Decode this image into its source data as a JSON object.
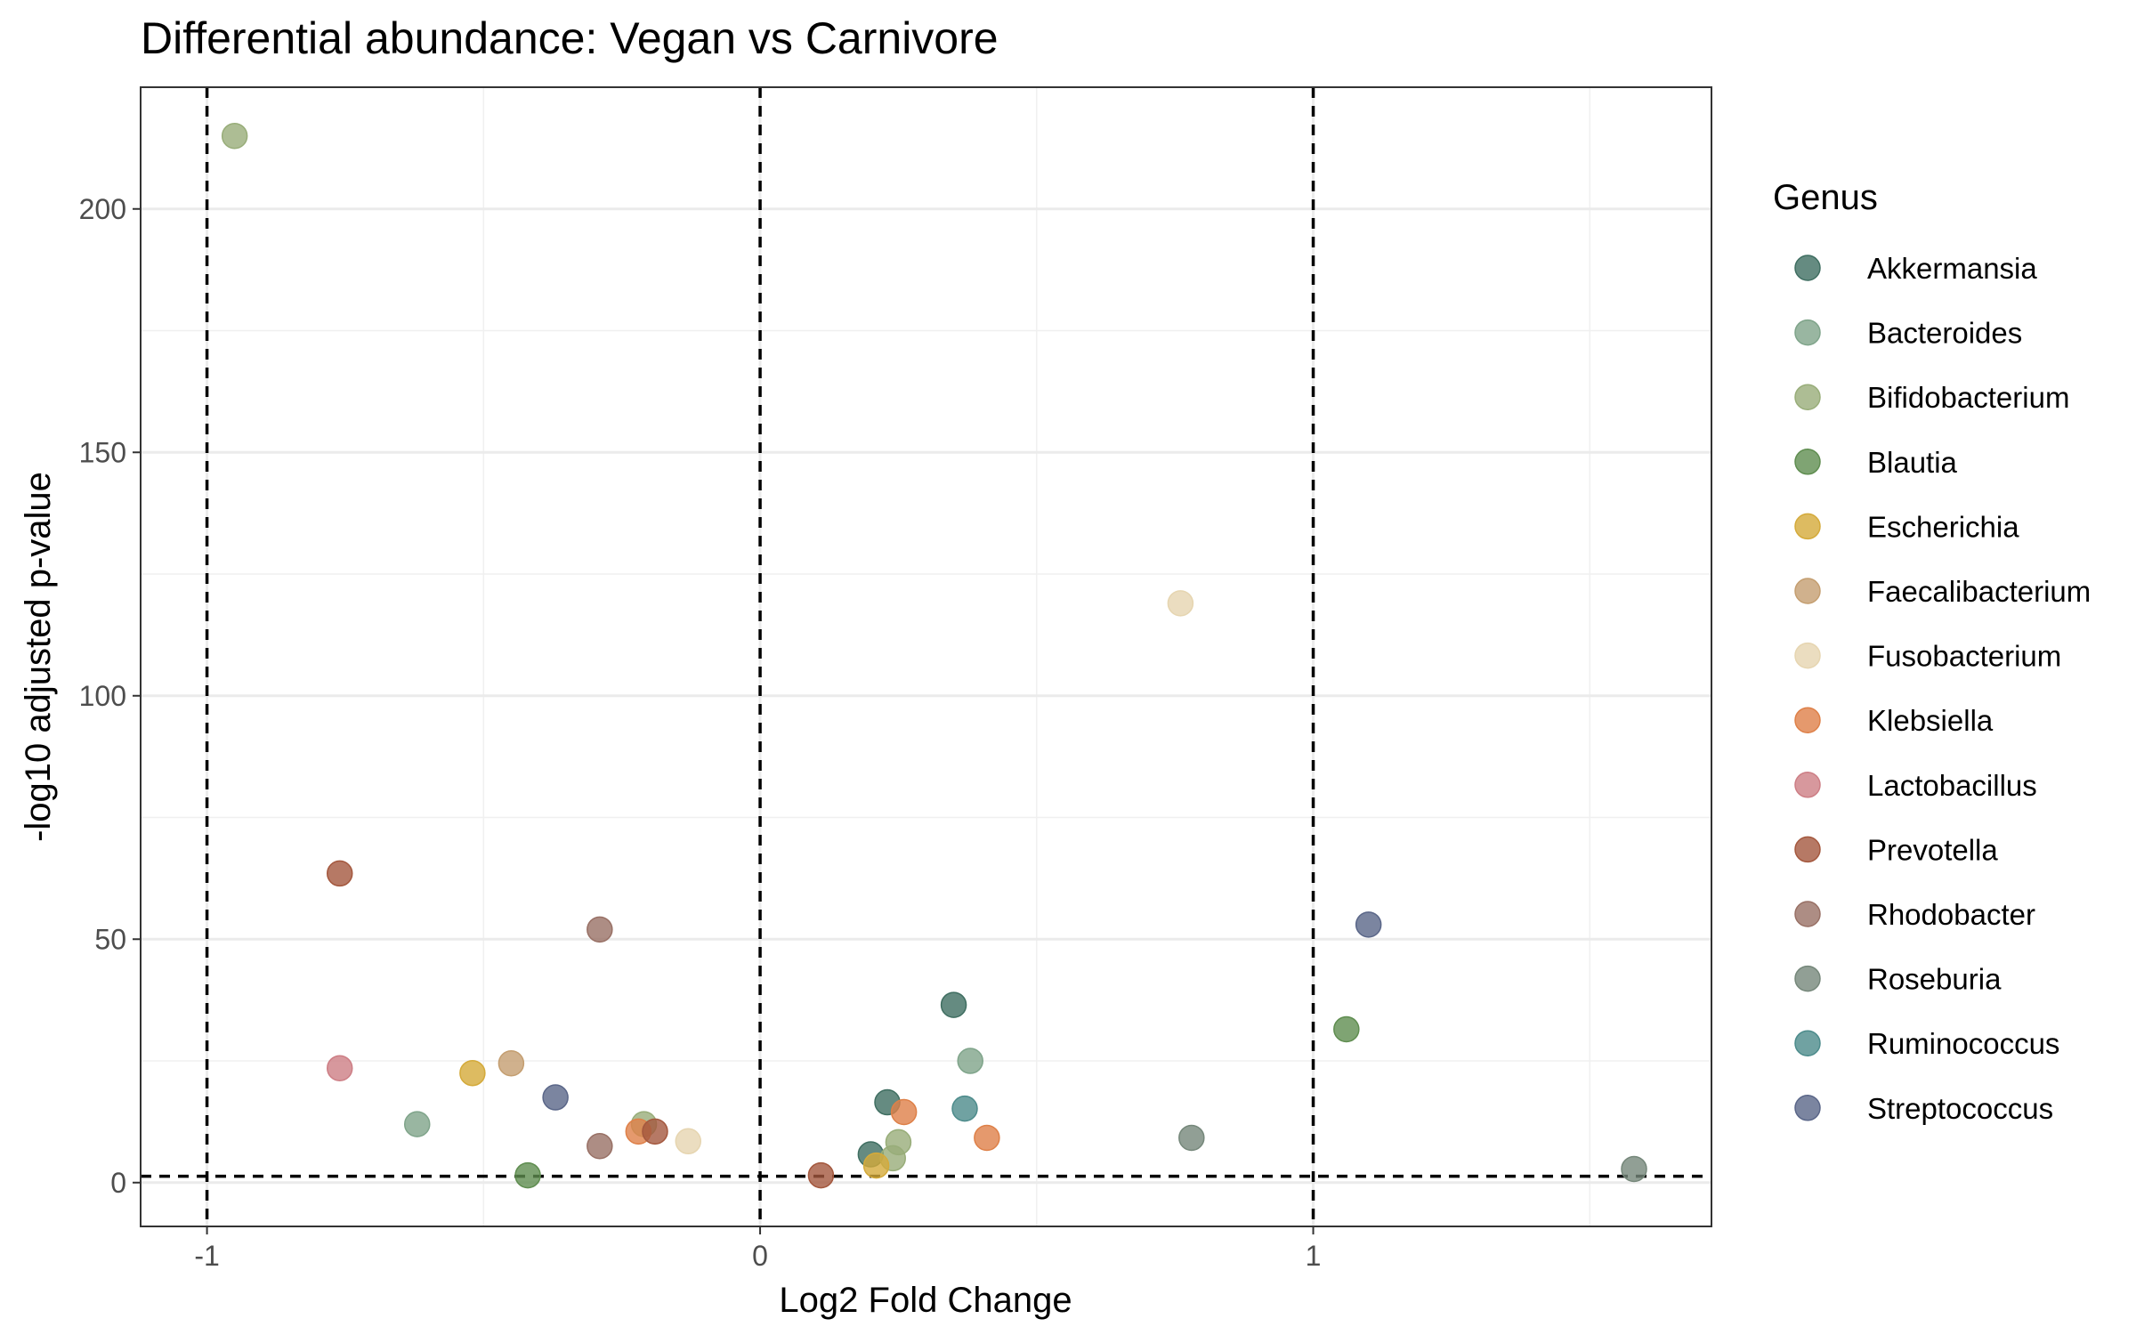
{
  "chart_data": {
    "type": "scatter",
    "title": "Differential abundance: Vegan vs Carnivore",
    "xlabel": "Log2 Fold Change",
    "ylabel": "-log10 adjusted p-value",
    "xlim": [
      -1.12,
      1.72
    ],
    "ylim": [
      -9,
      225
    ],
    "x_ticks": [
      -1,
      0,
      1
    ],
    "y_ticks": [
      0,
      50,
      100,
      150,
      200
    ],
    "grid": true,
    "legend": {
      "title": "Genus",
      "position": "right"
    },
    "threshold_lines": {
      "vertical": [
        -1,
        0,
        1
      ],
      "horizontal": [
        1.3
      ]
    },
    "series": [
      {
        "name": "Akkermansia",
        "color": "#3f6e61",
        "points": [
          [
            0.35,
            36.5
          ],
          [
            0.23,
            16.5
          ],
          [
            0.2,
            5.8
          ]
        ]
      },
      {
        "name": "Bacteroides",
        "color": "#7fa48a",
        "points": [
          [
            0.38,
            25
          ],
          [
            -0.62,
            12
          ]
        ]
      },
      {
        "name": "Bifidobacterium",
        "color": "#98ad79",
        "points": [
          [
            -0.95,
            215
          ],
          [
            -0.21,
            12
          ],
          [
            0.25,
            8.3
          ],
          [
            0.24,
            5
          ]
        ]
      },
      {
        "name": "Blautia",
        "color": "#5f8d50",
        "points": [
          [
            1.06,
            31.5
          ],
          [
            -0.42,
            1.5
          ]
        ]
      },
      {
        "name": "Escherichia",
        "color": "#d4aa3a",
        "points": [
          [
            -0.52,
            22.5
          ],
          [
            0.21,
            3.5
          ]
        ]
      },
      {
        "name": "Faecalibacterium",
        "color": "#c49e70",
        "points": [
          [
            -0.45,
            24.5
          ]
        ]
      },
      {
        "name": "Fusobacterium",
        "color": "#e6d5b0",
        "points": [
          [
            0.76,
            119
          ],
          [
            -0.13,
            8.5
          ]
        ]
      },
      {
        "name": "Klebsiella",
        "color": "#de8048",
        "points": [
          [
            -0.22,
            10.5
          ],
          [
            0.26,
            14.5
          ],
          [
            0.41,
            9.2
          ]
        ]
      },
      {
        "name": "Lactobacillus",
        "color": "#cd7e85",
        "points": [
          [
            -0.76,
            23.5
          ]
        ]
      },
      {
        "name": "Prevotella",
        "color": "#a4583e",
        "points": [
          [
            -0.76,
            63.5
          ],
          [
            -0.19,
            10.5
          ],
          [
            0.11,
            1.5
          ]
        ]
      },
      {
        "name": "Rhodobacter",
        "color": "#987065",
        "points": [
          [
            -0.29,
            52
          ],
          [
            -0.29,
            7.5
          ]
        ]
      },
      {
        "name": "Roseburia",
        "color": "#75877a",
        "points": [
          [
            0.78,
            9.2
          ],
          [
            1.58,
            2.8
          ]
        ]
      },
      {
        "name": "Ruminococcus",
        "color": "#4c8b8b",
        "points": [
          [
            0.37,
            15.2
          ]
        ]
      },
      {
        "name": "Streptococcus",
        "color": "#5a6688",
        "points": [
          [
            1.1,
            53
          ],
          [
            -0.37,
            17.5
          ]
        ]
      }
    ]
  }
}
